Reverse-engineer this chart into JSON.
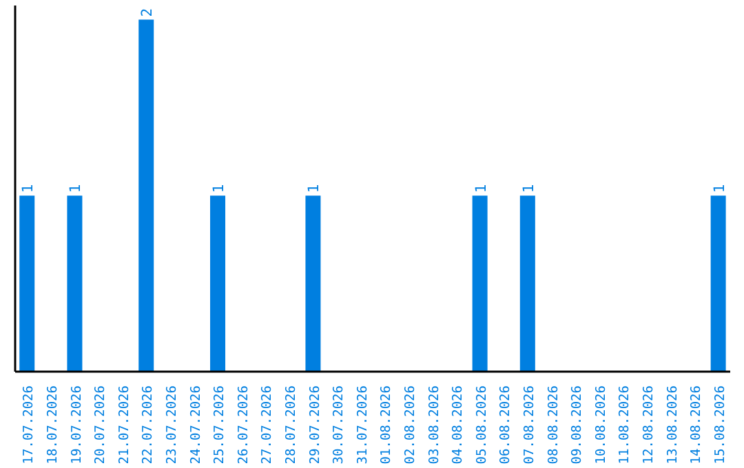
{
  "chart_data": {
    "type": "bar",
    "categories": [
      "17.07.2026",
      "18.07.2026",
      "19.07.2026",
      "20.07.2026",
      "21.07.2026",
      "22.07.2026",
      "23.07.2026",
      "24.07.2026",
      "25.07.2026",
      "26.07.2026",
      "27.07.2026",
      "28.07.2026",
      "29.07.2026",
      "30.07.2026",
      "31.07.2026",
      "01.08.2026",
      "02.08.2026",
      "03.08.2026",
      "04.08.2026",
      "05.08.2026",
      "06.08.2026",
      "07.08.2026",
      "08.08.2026",
      "09.08.2026",
      "10.08.2026",
      "11.08.2026",
      "12.08.2026",
      "13.08.2026",
      "14.08.2026",
      "15.08.2026"
    ],
    "values": [
      1,
      0,
      1,
      0,
      0,
      2,
      0,
      0,
      1,
      0,
      0,
      0,
      1,
      0,
      0,
      0,
      0,
      0,
      0,
      1,
      0,
      1,
      0,
      0,
      0,
      0,
      0,
      0,
      0,
      1
    ],
    "value_labels": [
      "1",
      null,
      "1",
      null,
      null,
      "2",
      null,
      null,
      "1",
      null,
      null,
      null,
      "1",
      null,
      null,
      null,
      null,
      null,
      null,
      "1",
      null,
      "1",
      null,
      null,
      null,
      null,
      null,
      null,
      null,
      "1"
    ],
    "color": "#007fe0",
    "tick_labels": "x"
  }
}
